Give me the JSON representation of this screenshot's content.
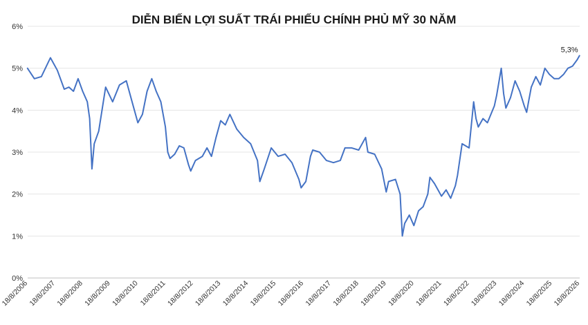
{
  "chart_data": {
    "type": "line",
    "title": "DIỄN BIẾN LỢI SUẤT TRÁI PHIẾU CHÍNH PHỦ MỸ 30 NĂM",
    "xlabel": "",
    "ylabel": "",
    "y_tick_labels": [
      "0%",
      "1%",
      "2%",
      "3%",
      "4%",
      "5%",
      "6%"
    ],
    "y_tick_values": [
      0,
      1,
      2,
      3,
      4,
      5,
      6
    ],
    "ylim": [
      0,
      6
    ],
    "x_tick_labels": [
      "18/8/2006",
      "18/8/2007",
      "18/8/2008",
      "18/8/2009",
      "18/8/2010",
      "18/8/2011",
      "18/8/2012",
      "18/8/2013",
      "18/8/2014",
      "18/8/2015",
      "18/8/2016",
      "18/8/2017",
      "18/8/2018",
      "18/8/2019",
      "18/8/2020",
      "18/8/2021",
      "18/8/2022",
      "18/8/2023",
      "18/8/2024",
      "18/8/2025",
      "18/8/2026"
    ],
    "xlim": [
      "2006-08-18",
      "2026-08-18"
    ],
    "grid": true,
    "legend": "none",
    "annotation": {
      "text": "5,3%",
      "x": "2026-08-10",
      "y": 5.3
    },
    "series": [
      {
        "color": "#4472C4",
        "x": [
          "2006-08",
          "2006-11",
          "2007-02",
          "2007-06",
          "2007-09",
          "2007-12",
          "2008-02",
          "2008-04",
          "2008-06",
          "2008-08",
          "2008-10",
          "2008-11",
          "2008-12",
          "2009-01",
          "2009-03",
          "2009-06",
          "2009-09",
          "2009-12",
          "2010-03",
          "2010-06",
          "2010-08",
          "2010-10",
          "2010-12",
          "2011-02",
          "2011-04",
          "2011-06",
          "2011-08",
          "2011-09",
          "2011-10",
          "2011-12",
          "2012-02",
          "2012-04",
          "2012-06",
          "2012-07",
          "2012-09",
          "2012-12",
          "2013-02",
          "2013-04",
          "2013-06",
          "2013-08",
          "2013-10",
          "2013-12",
          "2014-03",
          "2014-06",
          "2014-09",
          "2014-12",
          "2015-01",
          "2015-03",
          "2015-06",
          "2015-09",
          "2015-12",
          "2016-03",
          "2016-06",
          "2016-07",
          "2016-09",
          "2016-11",
          "2016-12",
          "2017-03",
          "2017-06",
          "2017-09",
          "2017-12",
          "2018-02",
          "2018-05",
          "2018-08",
          "2018-11",
          "2018-12",
          "2019-03",
          "2019-06",
          "2019-08",
          "2019-09",
          "2019-12",
          "2020-02",
          "2020-03",
          "2020-04",
          "2020-06",
          "2020-08",
          "2020-10",
          "2020-12",
          "2021-02",
          "2021-03",
          "2021-05",
          "2021-08",
          "2021-10",
          "2021-12",
          "2022-02",
          "2022-03",
          "2022-05",
          "2022-08",
          "2022-10",
          "2022-11",
          "2022-12",
          "2023-02",
          "2023-04",
          "2023-07",
          "2023-08",
          "2023-10",
          "2023-11",
          "2023-12",
          "2024-02",
          "2024-04",
          "2024-06",
          "2024-08",
          "2024-09",
          "2024-10",
          "2024-11",
          "2025-01",
          "2025-03",
          "2025-05",
          "2025-07",
          "2025-09",
          "2025-11",
          "2026-01",
          "2026-03",
          "2026-05",
          "2026-07",
          "2026-08"
        ],
        "y": [
          5.0,
          4.75,
          4.8,
          5.25,
          4.95,
          4.5,
          4.55,
          4.45,
          4.75,
          4.45,
          4.2,
          3.8,
          2.6,
          3.2,
          3.5,
          4.55,
          4.2,
          4.6,
          4.7,
          4.1,
          3.7,
          3.9,
          4.45,
          4.75,
          4.45,
          4.2,
          3.6,
          3.0,
          2.85,
          2.95,
          3.15,
          3.1,
          2.7,
          2.55,
          2.8,
          2.9,
          3.1,
          2.9,
          3.35,
          3.75,
          3.65,
          3.9,
          3.55,
          3.35,
          3.2,
          2.8,
          2.3,
          2.6,
          3.1,
          2.9,
          2.95,
          2.75,
          2.35,
          2.15,
          2.3,
          2.9,
          3.05,
          3.0,
          2.8,
          2.75,
          2.8,
          3.1,
          3.1,
          3.05,
          3.35,
          3.0,
          2.95,
          2.6,
          2.05,
          2.3,
          2.35,
          2.0,
          1.0,
          1.3,
          1.5,
          1.25,
          1.6,
          1.7,
          2.0,
          2.4,
          2.25,
          1.95,
          2.1,
          1.9,
          2.2,
          2.45,
          3.2,
          3.1,
          4.2,
          3.8,
          3.6,
          3.8,
          3.7,
          4.1,
          4.35,
          5.0,
          4.4,
          4.05,
          4.3,
          4.7,
          4.45,
          4.1,
          3.95,
          4.25,
          4.55,
          4.8,
          4.6,
          5.0,
          4.85,
          4.75,
          4.75,
          4.85,
          5.0,
          5.05,
          5.2,
          5.3
        ]
      }
    ]
  }
}
